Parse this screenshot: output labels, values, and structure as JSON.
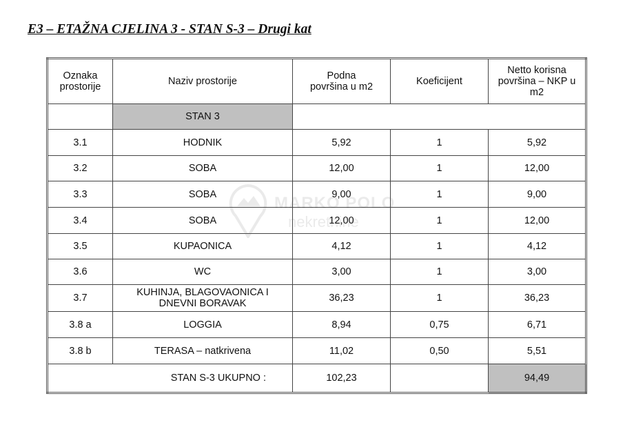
{
  "title": "E3 – ETAŽNA CJELINA 3 - STAN S-3 – Drugi kat",
  "headers": [
    "Oznaka prostorije",
    "Naziv prostorije",
    "Podna površina u m2",
    "Koeficijent",
    "Netto korisna površina – NKP u m2"
  ],
  "section": "STAN 3",
  "rows": [
    {
      "id": "3.1",
      "name": "HODNIK",
      "area": "5,92",
      "coef": "1",
      "nkp": "5,92"
    },
    {
      "id": "3.2",
      "name": "SOBA",
      "area": "12,00",
      "coef": "1",
      "nkp": "12,00"
    },
    {
      "id": "3.3",
      "name": "SOBA",
      "area": "9,00",
      "coef": "1",
      "nkp": "9,00"
    },
    {
      "id": "3.4",
      "name": "SOBA",
      "area": "12,00",
      "coef": "1",
      "nkp": "12,00"
    },
    {
      "id": "3.5",
      "name": "KUPAONICA",
      "area": "4,12",
      "coef": "1",
      "nkp": "4,12"
    },
    {
      "id": "3.6",
      "name": "WC",
      "area": "3,00",
      "coef": "1",
      "nkp": "3,00"
    },
    {
      "id": "3.7",
      "name": "KUHINJA, BLAGOVAONICA I DNEVNI BORAVAK",
      "area": "36,23",
      "coef": "1",
      "nkp": "36,23"
    },
    {
      "id": "3.8 a",
      "name": "LOGGIA",
      "area": "8,94",
      "coef": "0,75",
      "nkp": "6,71"
    },
    {
      "id": "3.8 b",
      "name": "TERASA – natkrivena",
      "area": "11,02",
      "coef": "0,50",
      "nkp": "5,51"
    }
  ],
  "total": {
    "label": "STAN S-3 UKUPNO :",
    "area": "102,23",
    "nkp": "94,49"
  },
  "watermark": {
    "line1": "MARKO POLO",
    "line2": "nekretnine"
  }
}
